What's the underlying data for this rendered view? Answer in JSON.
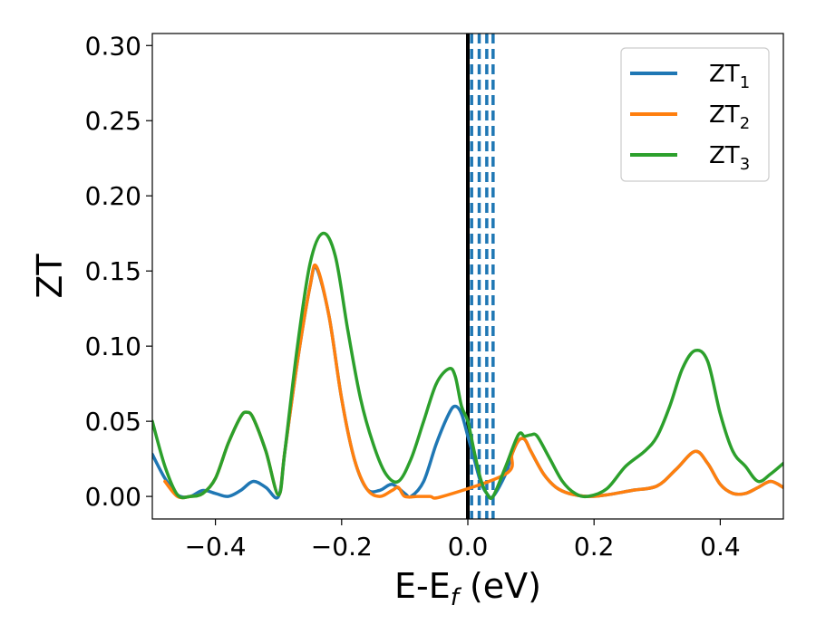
{
  "chart_data": {
    "type": "line",
    "xlabel": "E-E",
    "xlabel_sub": "f",
    "xlabel_unit": " (eV)",
    "ylabel": "ZT",
    "xlim": [
      -0.5,
      0.5
    ],
    "ylim": [
      -0.015,
      0.308
    ],
    "xticks": [
      -0.4,
      -0.2,
      0.0,
      0.2,
      0.4
    ],
    "xtick_labels": [
      "−0.4",
      "−0.2",
      "0.0",
      "0.2",
      "0.4"
    ],
    "yticks": [
      0.0,
      0.05,
      0.1,
      0.15,
      0.2,
      0.25,
      0.3
    ],
    "ytick_labels": [
      "0.00",
      "0.05",
      "0.10",
      "0.15",
      "0.20",
      "0.25",
      "0.30"
    ],
    "grid": false,
    "legend_position": "top-right",
    "vlines": [
      {
        "x": 0.0,
        "style": "solid",
        "color": "#000000"
      },
      {
        "x": 0.006,
        "style": "dashed",
        "color": "#1f77b4"
      },
      {
        "x": 0.018,
        "style": "dashed",
        "color": "#1f77b4"
      },
      {
        "x": 0.03,
        "style": "dashed",
        "color": "#1f77b4"
      },
      {
        "x": 0.04,
        "style": "dashed",
        "color": "#1f77b4"
      }
    ],
    "series": [
      {
        "name": "ZT",
        "sub": "1",
        "color": "#1f77b4",
        "points": [
          [
            -0.5,
            0.028
          ],
          [
            -0.48,
            0.012
          ],
          [
            -0.46,
            0.001
          ],
          [
            -0.44,
            0.0
          ],
          [
            -0.42,
            0.004
          ],
          [
            -0.4,
            0.002
          ],
          [
            -0.38,
            0.0
          ],
          [
            -0.36,
            0.004
          ],
          [
            -0.34,
            0.01
          ],
          [
            -0.32,
            0.006
          ],
          [
            -0.3,
            0.0
          ],
          [
            -0.29,
            0.03
          ],
          [
            -0.27,
            0.09
          ],
          [
            -0.25,
            0.14
          ],
          [
            -0.24,
            0.152
          ],
          [
            -0.22,
            0.12
          ],
          [
            -0.2,
            0.065
          ],
          [
            -0.18,
            0.025
          ],
          [
            -0.16,
            0.005
          ],
          [
            -0.14,
            0.004
          ],
          [
            -0.12,
            0.008
          ],
          [
            -0.1,
            0.002
          ],
          [
            -0.09,
            0.0
          ],
          [
            -0.07,
            0.01
          ],
          [
            -0.05,
            0.035
          ],
          [
            -0.03,
            0.055
          ],
          [
            -0.02,
            0.06
          ],
          [
            -0.01,
            0.055
          ],
          [
            0.0,
            0.04
          ],
          [
            0.01,
            0.025
          ],
          [
            0.02,
            0.01
          ],
          [
            0.03,
            0.002
          ],
          [
            0.04,
            0.0
          ],
          [
            0.06,
            0.015
          ],
          [
            0.07,
            0.028
          ],
          [
            0.08,
            0.037
          ],
          [
            0.09,
            0.038
          ],
          [
            0.1,
            0.03
          ],
          [
            0.12,
            0.015
          ],
          [
            0.14,
            0.006
          ],
          [
            0.16,
            0.002
          ],
          [
            0.19,
            0.0
          ],
          [
            0.22,
            0.001
          ],
          [
            0.26,
            0.004
          ],
          [
            0.3,
            0.007
          ],
          [
            0.33,
            0.018
          ],
          [
            0.36,
            0.03
          ],
          [
            0.38,
            0.022
          ],
          [
            0.4,
            0.008
          ],
          [
            0.42,
            0.002
          ],
          [
            0.44,
            0.002
          ],
          [
            0.46,
            0.006
          ],
          [
            0.48,
            0.01
          ],
          [
            0.5,
            0.006
          ]
        ]
      },
      {
        "name": "ZT",
        "sub": "2",
        "color": "#ff7f0e",
        "points": [
          [
            -0.48,
            0.01
          ],
          [
            -0.46,
            0.0
          ],
          [
            -0.44,
            0.0
          ],
          [
            -0.42,
            0.002
          ],
          [
            -0.4,
            0.012
          ],
          [
            -0.38,
            0.035
          ],
          [
            -0.36,
            0.053
          ],
          [
            -0.35,
            0.056
          ],
          [
            -0.34,
            0.052
          ],
          [
            -0.32,
            0.03
          ],
          [
            -0.3,
            0.001
          ],
          [
            -0.29,
            0.03
          ],
          [
            -0.27,
            0.09
          ],
          [
            -0.25,
            0.14
          ],
          [
            -0.24,
            0.153
          ],
          [
            -0.22,
            0.12
          ],
          [
            -0.2,
            0.065
          ],
          [
            -0.18,
            0.025
          ],
          [
            -0.16,
            0.005
          ],
          [
            -0.14,
            0.0
          ],
          [
            -0.12,
            0.004
          ],
          [
            -0.11,
            0.006
          ],
          [
            -0.1,
            0.0
          ],
          [
            -0.08,
            0.0
          ],
          [
            -0.06,
            0.0
          ],
          [
            -0.04,
            0.0
          ],
          [
            0.06,
            0.015
          ],
          [
            0.07,
            0.028
          ],
          [
            0.08,
            0.037
          ],
          [
            0.09,
            0.038
          ],
          [
            0.1,
            0.03
          ],
          [
            0.12,
            0.015
          ],
          [
            0.14,
            0.006
          ],
          [
            0.16,
            0.002
          ],
          [
            0.19,
            0.0
          ],
          [
            0.22,
            0.001
          ],
          [
            0.26,
            0.004
          ],
          [
            0.3,
            0.007
          ],
          [
            0.33,
            0.018
          ],
          [
            0.36,
            0.03
          ],
          [
            0.38,
            0.022
          ],
          [
            0.4,
            0.008
          ],
          [
            0.42,
            0.002
          ],
          [
            0.44,
            0.002
          ],
          [
            0.46,
            0.006
          ],
          [
            0.48,
            0.01
          ],
          [
            0.5,
            0.006
          ]
        ]
      },
      {
        "name": "ZT",
        "sub": "3",
        "color": "#2ca02c",
        "points": [
          [
            -0.5,
            0.05
          ],
          [
            -0.48,
            0.02
          ],
          [
            -0.46,
            0.001
          ],
          [
            -0.44,
            0.0
          ],
          [
            -0.42,
            0.002
          ],
          [
            -0.4,
            0.012
          ],
          [
            -0.38,
            0.035
          ],
          [
            -0.36,
            0.053
          ],
          [
            -0.35,
            0.056
          ],
          [
            -0.34,
            0.052
          ],
          [
            -0.32,
            0.03
          ],
          [
            -0.3,
            0.001
          ],
          [
            -0.29,
            0.03
          ],
          [
            -0.27,
            0.1
          ],
          [
            -0.25,
            0.155
          ],
          [
            -0.23,
            0.175
          ],
          [
            -0.21,
            0.16
          ],
          [
            -0.19,
            0.11
          ],
          [
            -0.17,
            0.065
          ],
          [
            -0.15,
            0.035
          ],
          [
            -0.13,
            0.015
          ],
          [
            -0.11,
            0.01
          ],
          [
            -0.09,
            0.025
          ],
          [
            -0.07,
            0.05
          ],
          [
            -0.05,
            0.075
          ],
          [
            -0.03,
            0.085
          ],
          [
            -0.02,
            0.08
          ],
          [
            -0.01,
            0.06
          ],
          [
            0.0,
            0.05
          ],
          [
            0.01,
            0.03
          ],
          [
            0.02,
            0.012
          ],
          [
            0.03,
            0.002
          ],
          [
            0.04,
            0.0
          ],
          [
            0.06,
            0.02
          ],
          [
            0.08,
            0.041
          ],
          [
            0.09,
            0.04
          ],
          [
            0.1,
            0.041
          ],
          [
            0.11,
            0.04
          ],
          [
            0.13,
            0.025
          ],
          [
            0.15,
            0.01
          ],
          [
            0.17,
            0.002
          ],
          [
            0.19,
            0.0
          ],
          [
            0.22,
            0.005
          ],
          [
            0.25,
            0.02
          ],
          [
            0.28,
            0.03
          ],
          [
            0.3,
            0.04
          ],
          [
            0.32,
            0.06
          ],
          [
            0.34,
            0.085
          ],
          [
            0.36,
            0.097
          ],
          [
            0.38,
            0.09
          ],
          [
            0.4,
            0.055
          ],
          [
            0.42,
            0.03
          ],
          [
            0.44,
            0.02
          ],
          [
            0.46,
            0.01
          ],
          [
            0.48,
            0.015
          ],
          [
            0.5,
            0.022
          ]
        ]
      }
    ]
  }
}
